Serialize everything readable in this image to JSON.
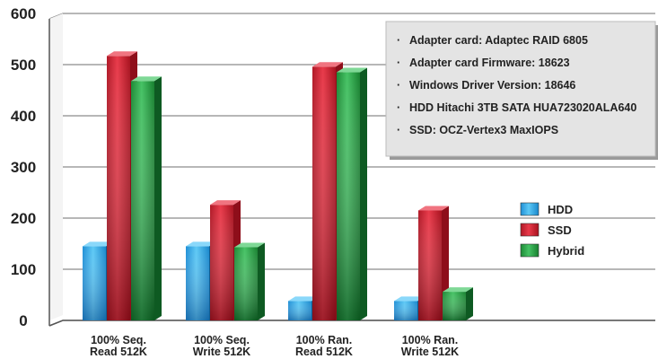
{
  "chart_data": {
    "type": "bar",
    "categories": [
      "100% Seq.\nRead 512K",
      "100% Seq.\nWrite 512K",
      "100% Ran.\nRead 512K",
      "100% Ran.\nWrite 512K"
    ],
    "series": [
      {
        "name": "HDD",
        "values": [
          145,
          145,
          38,
          38
        ]
      },
      {
        "name": "SSD",
        "values": [
          517,
          226,
          496,
          215
        ]
      },
      {
        "name": "Hybrid",
        "values": [
          468,
          143,
          485,
          56
        ]
      }
    ],
    "ylim": [
      0,
      600
    ],
    "yticks": [
      0,
      100,
      200,
      300,
      400,
      500,
      600
    ],
    "grid": true,
    "legend_position": "right",
    "colors": {
      "HDD": "#29a8e8",
      "SSD": "#d42535",
      "Hybrid": "#27a244"
    },
    "info_box": [
      "Adapter card: Adaptec RAID 6805",
      "Adapter card Firmware: 18623",
      "Windows Driver Version: 18646",
      "HDD Hitachi 3TB SATA HUA723020ALA640",
      "SSD: OCZ-Vertex3 MaxIOPS"
    ],
    "bullet": "·"
  }
}
